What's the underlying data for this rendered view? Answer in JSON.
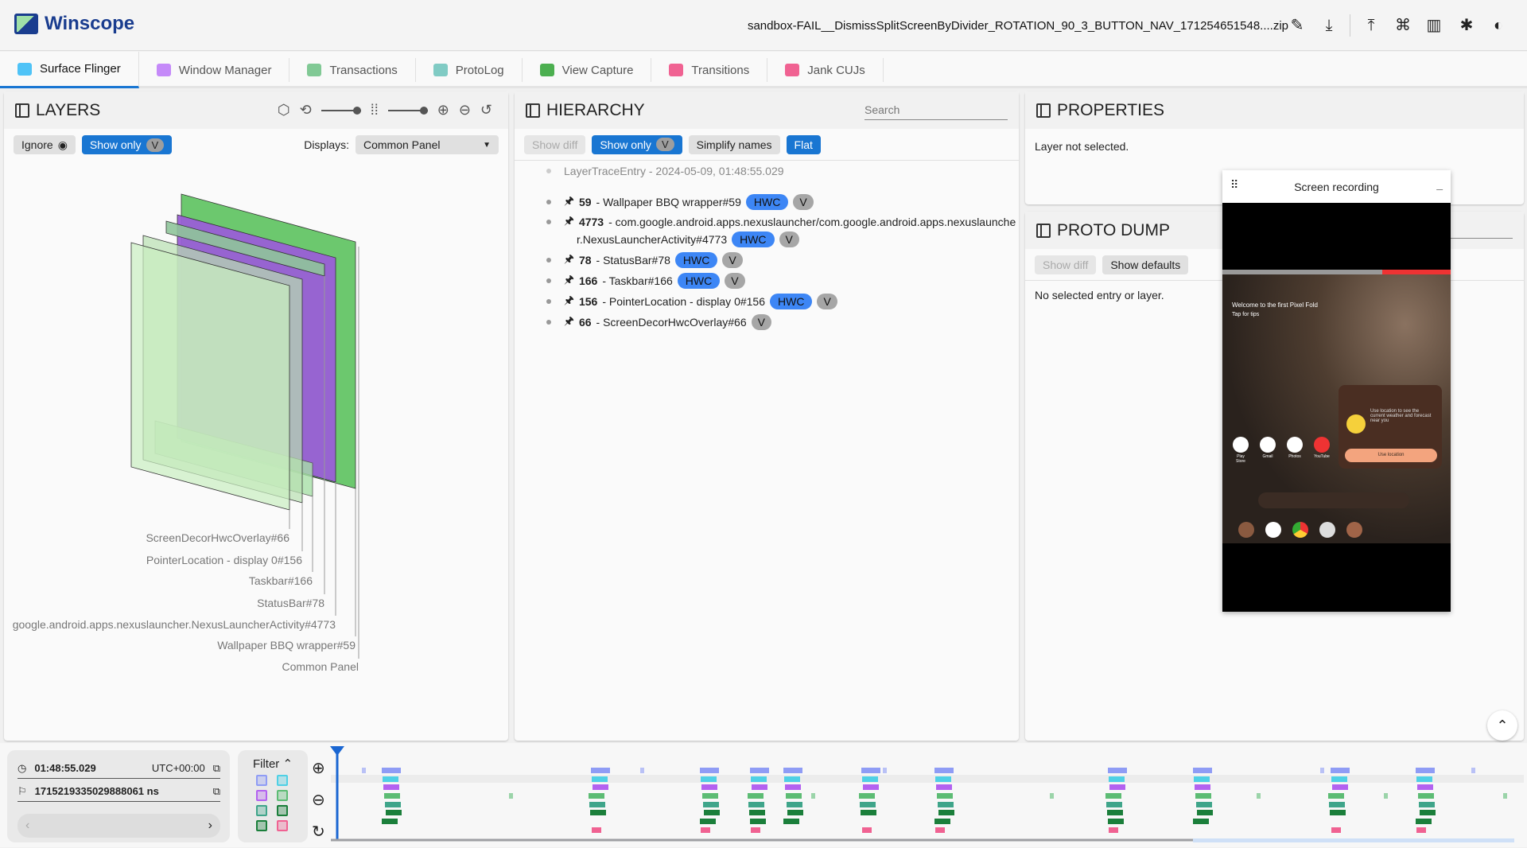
{
  "app": {
    "title": "Winscope",
    "filename": "sandbox-FAIL__DismissSplitScreenByDivider_ROTATION_90_3_BUTTON_NAV_171254651548....zip",
    "header_icons": [
      "edit-icon",
      "download-icon",
      "upload-icon",
      "shortcut-icon",
      "documentation-icon",
      "bug-report-icon",
      "theme-toggle-icon"
    ]
  },
  "tabs": [
    {
      "label": "Surface Flinger",
      "icon": "layers-icon",
      "color": "#4fc3f7",
      "active": true
    },
    {
      "label": "Window Manager",
      "icon": "window-icon",
      "color": "#c58af9"
    },
    {
      "label": "Transactions",
      "icon": "timeline-icon",
      "color": "#81c995"
    },
    {
      "label": "ProtoLog",
      "icon": "notes-icon",
      "color": "#80cbc4"
    },
    {
      "label": "View Capture",
      "icon": "view-capture-icon",
      "color": "#4caf50"
    },
    {
      "label": "Transitions",
      "icon": "transitions-icon",
      "color": "#f06292"
    },
    {
      "label": "Jank CUJs",
      "icon": "label-icon",
      "color": "#f06292"
    }
  ],
  "layers": {
    "title": "LAYERS",
    "ignore": "Ignore",
    "show_only": "Show only",
    "v": "V",
    "displays_label": "Displays:",
    "displays_value": "Common Panel",
    "labels": [
      "ScreenDecorHwcOverlay#66",
      "PointerLocation - display 0#156",
      "Taskbar#166",
      "StatusBar#78",
      "google.android.apps.nexuslauncher.NexusLauncherActivity#4773",
      "Wallpaper BBQ wrapper#59",
      "Common Panel"
    ]
  },
  "hierarchy": {
    "title": "HIERARCHY",
    "search_placeholder": "Search",
    "show_diff": "Show diff",
    "show_only": "Show only",
    "v": "V",
    "simplify": "Simplify names",
    "flat": "Flat",
    "root": "LayerTraceEntry - 2024-05-09, 01:48:55.029",
    "items": [
      {
        "id": "59",
        "name": " - Wallpaper BBQ wrapper#59",
        "hwc": "HWC",
        "v": "V"
      },
      {
        "id": "4773",
        "name": " - com.google.android.apps.nexuslauncher/com.google.android.apps.nexuslaunche",
        "name2": "r.NexusLauncherActivity#4773",
        "hwc": "HWC",
        "v": "V"
      },
      {
        "id": "78",
        "name": " - StatusBar#78",
        "hwc": "HWC",
        "v": "V"
      },
      {
        "id": "166",
        "name": " - Taskbar#166",
        "hwc": "HWC",
        "v": "V"
      },
      {
        "id": "156",
        "name": " - PointerLocation - display 0#156",
        "hwc": "HWC",
        "v": "V"
      },
      {
        "id": "66",
        "name": " - ScreenDecorHwcOverlay#66",
        "v": "V"
      }
    ]
  },
  "properties": {
    "title": "PROPERTIES",
    "empty": "Layer not selected."
  },
  "proto_dump": {
    "title": "PROTO DUMP",
    "show_diff": "Show diff",
    "show_defaults": "Show defaults",
    "empty": "No selected entry or layer."
  },
  "screen_recording": {
    "title": "Screen recording",
    "welcome": "Welcome to the first Pixel Fold",
    "tips": "Tap for tips",
    "weather": "Use location to see the current weather and forecast near you",
    "use_location": "Use location",
    "apps": [
      "Play Store",
      "Gmail",
      "Photos",
      "YouTube"
    ]
  },
  "timeline": {
    "time": "01:48:55.029",
    "timezone": "UTC+00:00",
    "ns": "1715219335029888061 ns",
    "filter": "Filter"
  }
}
